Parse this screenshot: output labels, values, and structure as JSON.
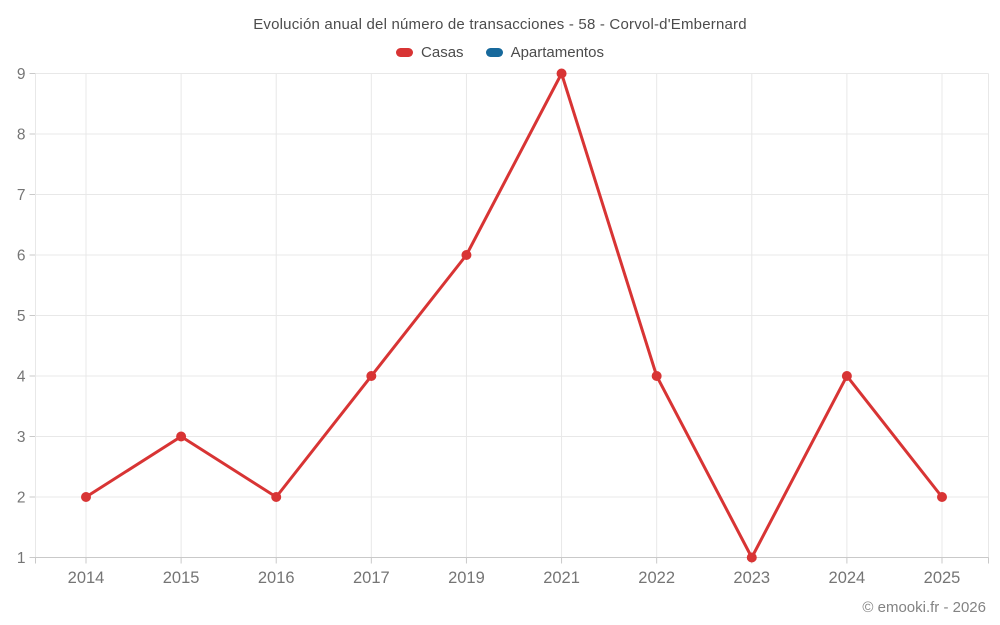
{
  "header": {
    "title": "Evolución anual del número de transacciones - 58 - Corvol-d'Embernard"
  },
  "legend": {
    "items": [
      {
        "label": "Casas",
        "color": "#d83434"
      },
      {
        "label": "Apartamentos",
        "color": "#17699c"
      }
    ]
  },
  "footer": {
    "credit": "© emooki.fr - 2026"
  },
  "chart_data": {
    "type": "line",
    "title": "Evolución anual del número de transacciones - 58 - Corvol-d'Embernard",
    "categories": [
      "2014",
      "2015",
      "2016",
      "2017",
      "2019",
      "2021",
      "2022",
      "2023",
      "2024",
      "2025"
    ],
    "series": [
      {
        "name": "Casas",
        "color": "#d83434",
        "values": [
          2,
          3,
          2,
          4,
          6,
          9,
          4,
          1,
          4,
          2
        ]
      },
      {
        "name": "Apartamentos",
        "color": "#17699c",
        "values": []
      }
    ],
    "xlabel": "",
    "ylabel": "",
    "ylim": [
      1,
      9
    ],
    "yticks": [
      1,
      2,
      3,
      4,
      5,
      6,
      7,
      8,
      9
    ],
    "grid": true,
    "legend_position": "top",
    "marker": "circle",
    "colors": {
      "gridline": "#e8e8e8",
      "axis_line": "#c9c9c9",
      "tick": "#c9c9c9",
      "axis_label": "#757575"
    }
  }
}
